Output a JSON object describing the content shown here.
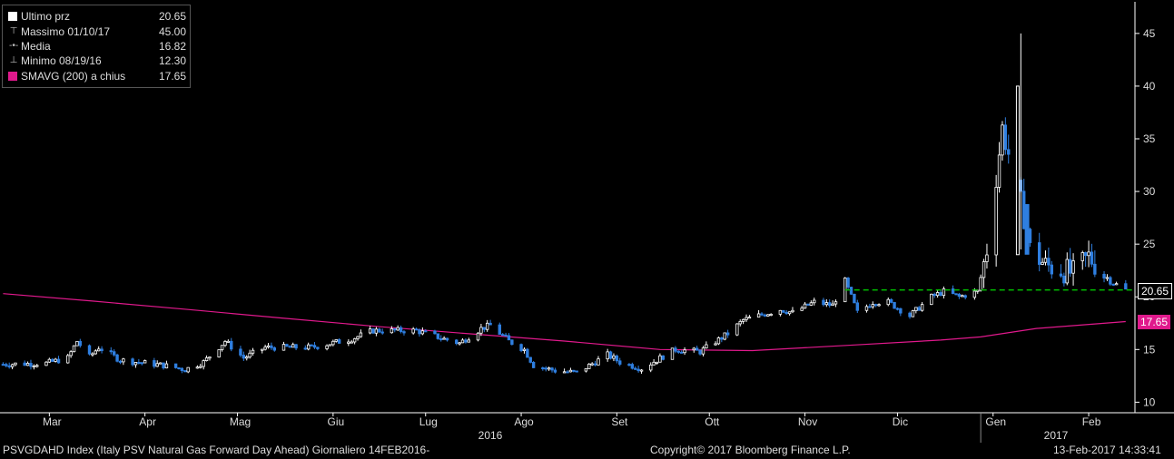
{
  "chart_data": {
    "type": "candlestick",
    "title": "PSVGDAHD Index (Italy PSV Natural Gas Forward Day Ahead)",
    "ylim": [
      9,
      48
    ],
    "yticks": [
      10,
      15,
      20,
      25,
      30,
      35,
      40,
      45
    ],
    "x_month_labels": [
      "Mar",
      "Apr",
      "Mag",
      "Giu",
      "Lug",
      "Ago",
      "Set",
      "Ott",
      "Nov",
      "Dic",
      "Gen",
      "Feb"
    ],
    "year_labels": [
      "2016",
      "2017"
    ],
    "legend": [
      {
        "label": "Ultimo prz",
        "value": "20.65"
      },
      {
        "label": "Massimo 01/10/17",
        "value": "45.00"
      },
      {
        "label": "Media",
        "value": "16.82"
      },
      {
        "label": "Minimo 08/19/16",
        "value": "12.30"
      },
      {
        "label": "SMAVG (200) a chius",
        "value": "17.65"
      }
    ],
    "last_price": 20.65,
    "sma_last": 17.65,
    "colors": {
      "up": "#ffffff",
      "down": "#2f7fe0",
      "sma": "#e0198c",
      "last": "#00c000",
      "axis": "#ffffff"
    },
    "price_series": [
      {
        "x": "2016-02-15",
        "y": 13.6
      },
      {
        "x": "2016-02-29",
        "y": 13.7
      },
      {
        "x": "2016-03-07",
        "y": 14.2
      },
      {
        "x": "2016-03-10",
        "y": 15.8
      },
      {
        "x": "2016-03-14",
        "y": 14.3
      },
      {
        "x": "2016-03-17",
        "y": 15.2
      },
      {
        "x": "2016-03-24",
        "y": 14.0
      },
      {
        "x": "2016-04-07",
        "y": 13.5
      },
      {
        "x": "2016-04-14",
        "y": 13.1
      },
      {
        "x": "2016-04-20",
        "y": 13.8
      },
      {
        "x": "2016-04-27",
        "y": 15.8
      },
      {
        "x": "2016-05-03",
        "y": 14.2
      },
      {
        "x": "2016-05-10",
        "y": 15.2
      },
      {
        "x": "2016-05-25",
        "y": 15.2
      },
      {
        "x": "2016-06-07",
        "y": 16.0
      },
      {
        "x": "2016-06-14",
        "y": 16.8
      },
      {
        "x": "2016-06-28",
        "y": 16.8
      },
      {
        "x": "2016-07-07",
        "y": 16.0
      },
      {
        "x": "2016-07-12",
        "y": 15.6
      },
      {
        "x": "2016-07-19",
        "y": 17.0
      },
      {
        "x": "2016-07-22",
        "y": 17.3
      },
      {
        "x": "2016-07-28",
        "y": 15.8
      },
      {
        "x": "2016-08-02",
        "y": 15.0
      },
      {
        "x": "2016-08-05",
        "y": 13.5
      },
      {
        "x": "2016-08-12",
        "y": 13.0
      },
      {
        "x": "2016-08-19",
        "y": 12.8
      },
      {
        "x": "2016-08-29",
        "y": 14.5
      },
      {
        "x": "2016-09-02",
        "y": 13.8
      },
      {
        "x": "2016-09-09",
        "y": 13.2
      },
      {
        "x": "2016-09-20",
        "y": 15.0
      },
      {
        "x": "2016-09-28",
        "y": 14.8
      },
      {
        "x": "2016-10-07",
        "y": 16.5
      },
      {
        "x": "2016-10-12",
        "y": 17.8
      },
      {
        "x": "2016-10-24",
        "y": 18.8
      },
      {
        "x": "2016-10-28",
        "y": 18.5
      },
      {
        "x": "2016-11-04",
        "y": 19.5
      },
      {
        "x": "2016-11-10",
        "y": 19.2
      },
      {
        "x": "2016-11-14",
        "y": 21.5
      },
      {
        "x": "2016-11-18",
        "y": 18.5
      },
      {
        "x": "2016-11-23",
        "y": 19.5
      },
      {
        "x": "2016-11-28",
        "y": 19.5
      },
      {
        "x": "2016-12-05",
        "y": 18.2
      },
      {
        "x": "2016-12-12",
        "y": 20.0
      },
      {
        "x": "2016-12-16",
        "y": 20.5
      },
      {
        "x": "2016-12-21",
        "y": 20.0
      },
      {
        "x": "2016-12-27",
        "y": 20.5
      },
      {
        "x": "2016-12-30",
        "y": 24.5
      },
      {
        "x": "2017-01-04",
        "y": 36.0
      },
      {
        "x": "2017-01-09",
        "y": 30.0
      },
      {
        "x": "2017-01-12",
        "y": 26.5
      },
      {
        "x": "2017-01-13",
        "y": 24.5
      },
      {
        "x": "2017-01-18",
        "y": 23.0
      },
      {
        "x": "2017-01-24",
        "y": 22.5
      },
      {
        "x": "2017-01-27",
        "y": 22.2
      },
      {
        "x": "2017-02-01",
        "y": 23.8
      },
      {
        "x": "2017-02-08",
        "y": 21.5
      },
      {
        "x": "2017-02-13",
        "y": 20.65
      }
    ],
    "sma_series": [
      {
        "x": "2016-02-15",
        "y": 20.3
      },
      {
        "x": "2016-03-15",
        "y": 19.6
      },
      {
        "x": "2016-04-15",
        "y": 18.8
      },
      {
        "x": "2016-05-15",
        "y": 18.0
      },
      {
        "x": "2016-06-15",
        "y": 17.2
      },
      {
        "x": "2016-07-15",
        "y": 16.5
      },
      {
        "x": "2016-08-15",
        "y": 15.8
      },
      {
        "x": "2016-09-15",
        "y": 15.0
      },
      {
        "x": "2016-10-15",
        "y": 14.9
      },
      {
        "x": "2016-11-15",
        "y": 15.4
      },
      {
        "x": "2016-12-15",
        "y": 15.9
      },
      {
        "x": "2016-12-28",
        "y": 16.2
      },
      {
        "x": "2017-01-15",
        "y": 17.0
      },
      {
        "x": "2017-02-13",
        "y": 17.65
      }
    ]
  },
  "footer": {
    "index_text": "PSVGDAHD Index (Italy PSV Natural Gas Forward Day Ahead)  Giornaliero 14FEB2016-",
    "copyright": "Copyright© 2017 Bloomberg Finance L.P.",
    "timestamp": "13-Feb-2017 14:33:41"
  }
}
